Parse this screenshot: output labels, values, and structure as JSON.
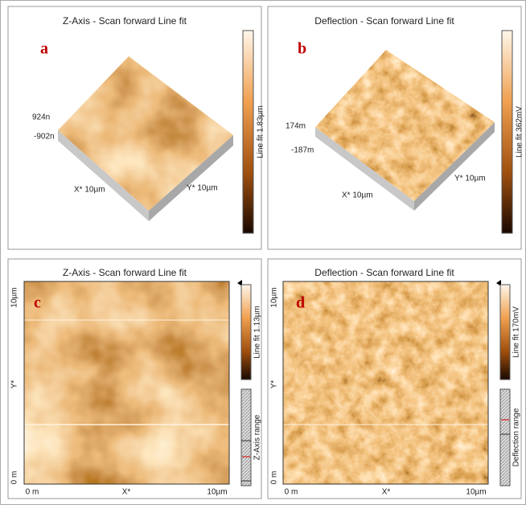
{
  "panels": [
    {
      "title": "Z-Axis - Scan forward   Line fit",
      "letter": "a",
      "z_max": "924n",
      "z_min": "-902n",
      "x_axis": "X* 10µm",
      "y_axis": "Y* 10µm",
      "colorbar": "Line fit 1.83µm"
    },
    {
      "title": "Deflection - Scan forward   Line fit",
      "letter": "b",
      "z_max": "174m",
      "z_min": "-187m",
      "x_axis": "X* 10µm",
      "y_axis": "Y* 10µm",
      "colorbar": "Line fit 362mV"
    },
    {
      "title": "Z-Axis - Scan forward   Line fit",
      "letter": "c",
      "y_top": "10µm",
      "y_mid": "Y*",
      "y_bottom": "0 m",
      "x_left": "0 m",
      "x_mid": "X*",
      "x_right": "10µm",
      "colorbar": "Line fit 1.13µm",
      "range": "Z-Axis range"
    },
    {
      "title": "Deflection - Scan forward   Line fit",
      "letter": "d",
      "y_top": "10µm",
      "y_mid": "Y*",
      "y_bottom": "0 m",
      "x_left": "0 m",
      "x_mid": "X*",
      "x_right": "10µm",
      "colorbar": "Line fit 170mV",
      "range": "Deflection range"
    }
  ]
}
